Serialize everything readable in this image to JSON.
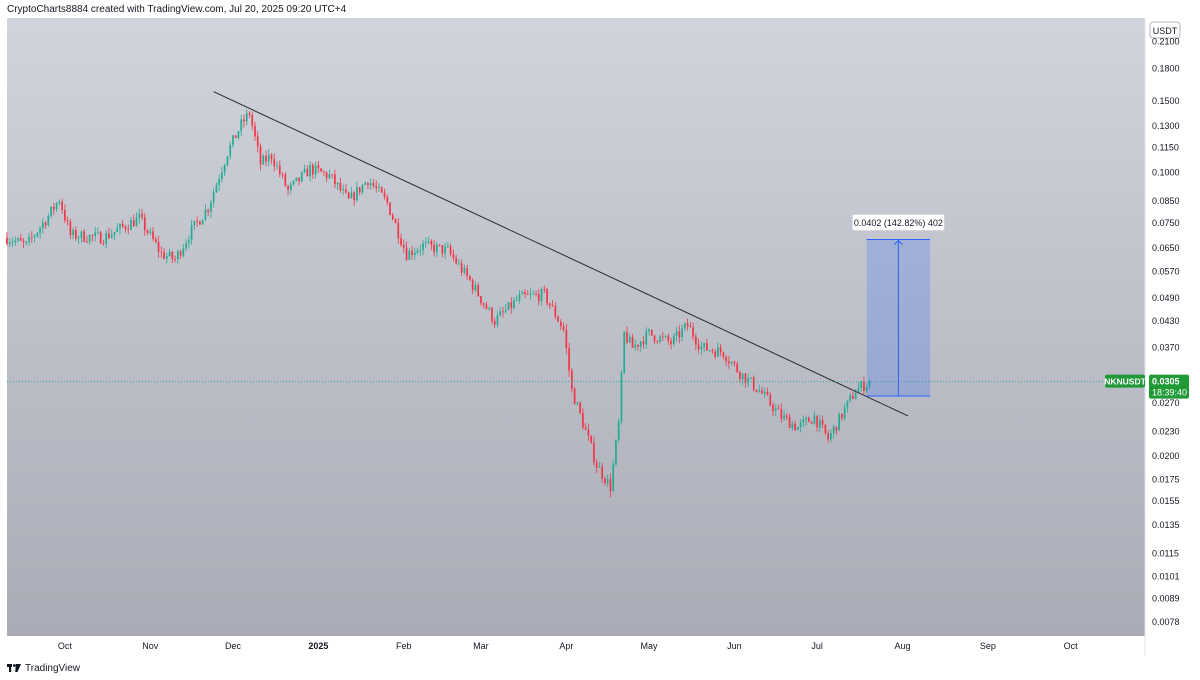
{
  "header": {
    "attribution": "CryptoCharts8884 created with TradingView.com, Jul 20, 2025 09:20 UTC+4"
  },
  "footer": {
    "brand": "TradingView",
    "brand_icon": "tradingview-logo-icon"
  },
  "colors": {
    "bg_top": "#d1d4dc",
    "bg_bottom": "#a9acb6",
    "up": "#22ab94",
    "down": "#f23645",
    "trendline": "#2b2b2b",
    "projection_fill": "#2962ff",
    "projection_line": "#2962ff",
    "price_badge": "#1f9a37"
  },
  "price_axis": {
    "currency": "USDT",
    "scale": "log",
    "ticks": [
      "0.2100",
      "0.1800",
      "0.1500",
      "0.1300",
      "0.1150",
      "0.1000",
      "0.0850",
      "0.0750",
      "0.0650",
      "0.0570",
      "0.0490",
      "0.0430",
      "0.0370",
      "0.0270",
      "0.0230",
      "0.0200",
      "0.0175",
      "0.0155",
      "0.0135",
      "0.0115",
      "0.0101",
      "0.0089",
      "0.0078"
    ]
  },
  "time_axis": {
    "ticks": [
      {
        "label": "Oct",
        "date": "2024-10-01"
      },
      {
        "label": "Nov",
        "date": "2024-11-01"
      },
      {
        "label": "Dec",
        "date": "2024-12-01"
      },
      {
        "label": "2025",
        "date": "2025-01-01",
        "bold": true
      },
      {
        "label": "Feb",
        "date": "2025-02-01"
      },
      {
        "label": "Mar",
        "date": "2025-03-01"
      },
      {
        "label": "Apr",
        "date": "2025-04-01"
      },
      {
        "label": "May",
        "date": "2025-05-01"
      },
      {
        "label": "Jun",
        "date": "2025-06-01"
      },
      {
        "label": "Jul",
        "date": "2025-07-01"
      },
      {
        "label": "Aug",
        "date": "2025-08-01"
      },
      {
        "label": "Sep",
        "date": "2025-09-01"
      },
      {
        "label": "Oct",
        "date": "2025-10-01"
      }
    ]
  },
  "current_price": {
    "symbol": "NKNUSDT",
    "value": 0.0305,
    "value_label": "0.0305",
    "countdown": "18:39:40"
  },
  "projection": {
    "label": "0.0402 (142.82%) 402",
    "start_date": "2025-07-19",
    "end_date": "2025-08-11",
    "low": 0.0281,
    "high": 0.0683
  },
  "chart_data": {
    "type": "candlestick",
    "symbol": "NKNUSDT",
    "interval": "1D",
    "yscale": "log",
    "ylim": [
      0.0072,
      0.24
    ],
    "xlim": [
      "2024-09-10",
      "2025-10-28"
    ],
    "trendline": {
      "start": {
        "date": "2024-11-24",
        "price": 0.158
      },
      "end": {
        "date": "2025-08-03",
        "price": 0.0251
      }
    },
    "anchors": [
      [
        "2024-09-10",
        0.069
      ],
      [
        "2024-09-17",
        0.066
      ],
      [
        "2024-09-25",
        0.078
      ],
      [
        "2024-09-29",
        0.086
      ],
      [
        "2024-10-03",
        0.07
      ],
      [
        "2024-10-15",
        0.069
      ],
      [
        "2024-10-28",
        0.077
      ],
      [
        "2024-11-05",
        0.063
      ],
      [
        "2024-11-10",
        0.061
      ],
      [
        "2024-11-16",
        0.072
      ],
      [
        "2024-11-22",
        0.082
      ],
      [
        "2024-11-29",
        0.112
      ],
      [
        "2024-12-04",
        0.131
      ],
      [
        "2024-12-07",
        0.14
      ],
      [
        "2024-12-11",
        0.105
      ],
      [
        "2024-12-15",
        0.11
      ],
      [
        "2024-12-21",
        0.09
      ],
      [
        "2024-12-29",
        0.102
      ],
      [
        "2025-01-05",
        0.098
      ],
      [
        "2025-01-12",
        0.085
      ],
      [
        "2025-01-19",
        0.096
      ],
      [
        "2025-01-26",
        0.084
      ],
      [
        "2025-02-02",
        0.063
      ],
      [
        "2025-02-08",
        0.066
      ],
      [
        "2025-02-17",
        0.064
      ],
      [
        "2025-02-25",
        0.054
      ],
      [
        "2025-03-06",
        0.043
      ],
      [
        "2025-03-15",
        0.049
      ],
      [
        "2025-03-24",
        0.05
      ],
      [
        "2025-03-31",
        0.041
      ],
      [
        "2025-04-03",
        0.029
      ],
      [
        "2025-04-08",
        0.023
      ],
      [
        "2025-04-12",
        0.019
      ],
      [
        "2025-04-17",
        0.0168
      ],
      [
        "2025-04-20",
        0.024
      ],
      [
        "2025-04-22",
        0.04
      ],
      [
        "2025-04-25",
        0.037
      ],
      [
        "2025-05-01",
        0.04
      ],
      [
        "2025-05-09",
        0.038
      ],
      [
        "2025-05-15",
        0.042
      ],
      [
        "2025-05-20",
        0.037
      ],
      [
        "2025-05-28",
        0.036
      ],
      [
        "2025-06-03",
        0.032
      ],
      [
        "2025-06-10",
        0.029
      ],
      [
        "2025-06-18",
        0.025
      ],
      [
        "2025-06-24",
        0.0235
      ],
      [
        "2025-06-30",
        0.025
      ],
      [
        "2025-07-05",
        0.022
      ],
      [
        "2025-07-11",
        0.026
      ],
      [
        "2025-07-15",
        0.029
      ],
      [
        "2025-07-20",
        0.0305
      ]
    ]
  }
}
